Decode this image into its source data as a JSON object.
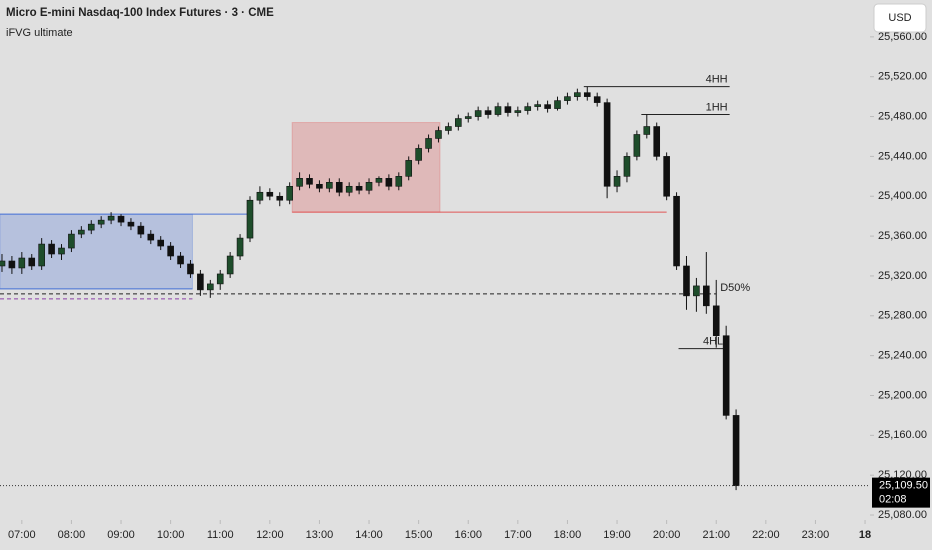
{
  "chart_data": {
    "type": "candlestick",
    "title": "Micro E-mini Nasdaq-100 Index Futures · 3 · CME",
    "subtitle": "iFVG ultimate",
    "currency": "USD",
    "up_color": "#1e4d2b",
    "down_color": "#111111",
    "xlim": [
      6.56,
      24.1
    ],
    "ylim": [
      25075,
      25597
    ],
    "xticks": [
      {
        "value": 7,
        "label": "07:00"
      },
      {
        "value": 8,
        "label": "08:00"
      },
      {
        "value": 9,
        "label": "09:00"
      },
      {
        "value": 10,
        "label": "10:00"
      },
      {
        "value": 11,
        "label": "11:00"
      },
      {
        "value": 12,
        "label": "12:00"
      },
      {
        "value": 13,
        "label": "13:00"
      },
      {
        "value": 14,
        "label": "14:00"
      },
      {
        "value": 15,
        "label": "15:00"
      },
      {
        "value": 16,
        "label": "16:00"
      },
      {
        "value": 17,
        "label": "17:00"
      },
      {
        "value": 18,
        "label": "18:00"
      },
      {
        "value": 19,
        "label": "19:00"
      },
      {
        "value": 20,
        "label": "20:00"
      },
      {
        "value": 21,
        "label": "21:00"
      },
      {
        "value": 22,
        "label": "22:00"
      },
      {
        "value": 23,
        "label": "23:00"
      },
      {
        "value": 24,
        "label": "18"
      }
    ],
    "yticks": [
      {
        "value": 25080,
        "label": "25,080.00"
      },
      {
        "value": 25120,
        "label": "25,120.00"
      },
      {
        "value": 25160,
        "label": "25,160.00"
      },
      {
        "value": 25200,
        "label": "25,200.00"
      },
      {
        "value": 25240,
        "label": "25,240.00"
      },
      {
        "value": 25280,
        "label": "25,280.00"
      },
      {
        "value": 25320,
        "label": "25,320.00"
      },
      {
        "value": 25360,
        "label": "25,360.00"
      },
      {
        "value": 25400,
        "label": "25,400.00"
      },
      {
        "value": 25440,
        "label": "25,440.00"
      },
      {
        "value": 25480,
        "label": "25,480.00"
      },
      {
        "value": 25520,
        "label": "25,520.00"
      },
      {
        "value": 25560,
        "label": "25,560.00"
      }
    ],
    "x": [
      6.6,
      6.8,
      7.0,
      7.2,
      7.4,
      7.6,
      7.8,
      8.0,
      8.2,
      8.4,
      8.6,
      8.8,
      9.0,
      9.2,
      9.4,
      9.6,
      9.8,
      10.0,
      10.2,
      10.4,
      10.6,
      10.8,
      11.0,
      11.2,
      11.4,
      11.6,
      11.8,
      12.0,
      12.2,
      12.4,
      12.6,
      12.8,
      13.0,
      13.2,
      13.4,
      13.6,
      13.8,
      14.0,
      14.2,
      14.4,
      14.6,
      14.8,
      15.0,
      15.2,
      15.4,
      15.6,
      15.8,
      16.0,
      16.2,
      16.4,
      16.6,
      16.8,
      17.0,
      17.2,
      17.4,
      17.6,
      17.8,
      18.0,
      18.2,
      18.4,
      18.6,
      18.8,
      19.0,
      19.2,
      19.4,
      19.6,
      19.8,
      20.0,
      20.2,
      20.4,
      20.6,
      20.8,
      21.0,
      21.2,
      21.4
    ],
    "open": [
      25330,
      25335,
      25328,
      25338,
      25330,
      25352,
      25342,
      25348,
      25362,
      25366,
      25372,
      25376,
      25380,
      25374,
      25370,
      25362,
      25356,
      25350,
      25340,
      25332,
      25322,
      25306,
      25312,
      25322,
      25340,
      25358,
      25396,
      25404,
      25400,
      25396,
      25410,
      25418,
      25412,
      25408,
      25414,
      25404,
      25410,
      25406,
      25414,
      25418,
      25410,
      25420,
      25436,
      25448,
      25458,
      25466,
      25470,
      25478,
      25480,
      25486,
      25482,
      25490,
      25484,
      25486,
      25490,
      25492,
      25488,
      25496,
      25500,
      25504,
      25500,
      25494,
      25410,
      25420,
      25440,
      25462,
      25470,
      25440,
      25400,
      25330,
      25300,
      25310,
      25290,
      25260,
      25180
    ],
    "high": [
      25342,
      25340,
      25344,
      25342,
      25358,
      25356,
      25352,
      25366,
      25370,
      25376,
      25380,
      25384,
      25382,
      25378,
      25374,
      25366,
      25360,
      25354,
      25344,
      25336,
      25326,
      25316,
      25326,
      25344,
      25362,
      25400,
      25410,
      25408,
      25404,
      25414,
      25424,
      25422,
      25416,
      25418,
      25418,
      25414,
      25414,
      25418,
      25420,
      25422,
      25424,
      25440,
      25452,
      25462,
      25470,
      25474,
      25482,
      25484,
      25490,
      25490,
      25494,
      25494,
      25490,
      25494,
      25496,
      25496,
      25500,
      25504,
      25508,
      25510,
      25504,
      25498,
      25426,
      25444,
      25466,
      25482,
      25474,
      25444,
      25404,
      25340,
      25318,
      25344,
      25316,
      25270,
      25186
    ],
    "low": [
      25324,
      25322,
      25322,
      25326,
      25326,
      25338,
      25336,
      25344,
      25358,
      25362,
      25368,
      25372,
      25370,
      25366,
      25358,
      25352,
      25346,
      25336,
      25328,
      25318,
      25300,
      25298,
      25306,
      25318,
      25336,
      25354,
      25392,
      25396,
      25390,
      25392,
      25406,
      25408,
      25404,
      25404,
      25400,
      25400,
      25402,
      25402,
      25410,
      25406,
      25406,
      25416,
      25432,
      25444,
      25454,
      25462,
      25466,
      25474,
      25476,
      25478,
      25480,
      25480,
      25480,
      25482,
      25486,
      25484,
      25486,
      25492,
      25496,
      25496,
      25490,
      25398,
      25404,
      25414,
      25436,
      25458,
      25436,
      25396,
      25326,
      25286,
      25284,
      25282,
      25248,
      25176,
      25105
    ],
    "close": [
      25335,
      25328,
      25338,
      25330,
      25352,
      25342,
      25348,
      25362,
      25366,
      25372,
      25376,
      25380,
      25374,
      25370,
      25362,
      25356,
      25350,
      25340,
      25332,
      25322,
      25306,
      25312,
      25322,
      25340,
      25358,
      25396,
      25404,
      25400,
      25396,
      25410,
      25418,
      25412,
      25408,
      25414,
      25404,
      25410,
      25406,
      25414,
      25418,
      25410,
      25420,
      25436,
      25448,
      25458,
      25466,
      25470,
      25478,
      25480,
      25486,
      25482,
      25490,
      25484,
      25486,
      25490,
      25492,
      25488,
      25496,
      25500,
      25504,
      25500,
      25494,
      25410,
      25420,
      25440,
      25462,
      25470,
      25440,
      25400,
      25330,
      25300,
      25310,
      25290,
      25260,
      25180,
      25109.5
    ],
    "zones": [
      {
        "x0": 6.56,
        "x1": 10.44,
        "top": 25382,
        "bottom": 25307,
        "line_end": 11.59,
        "color": "#4a73d6"
      },
      {
        "x0": 12.45,
        "x1": 15.43,
        "top": 25474,
        "bottom": 25384,
        "line_end": 20.0,
        "color": "#e05555"
      }
    ],
    "levels": [
      {
        "label": "4HH",
        "value": 25510,
        "x0": 18.33,
        "x1": 21.27,
        "style": "solid",
        "color": "#222222"
      },
      {
        "label": "1HH",
        "value": 25482,
        "x0": 19.49,
        "x1": 21.27,
        "style": "solid",
        "color": "#222222"
      },
      {
        "label": "D50%",
        "value": 25302,
        "x0": 6.56,
        "x1": 21.0,
        "style": "dashed",
        "color": "#222222"
      },
      {
        "label": "4HL",
        "value": 25247,
        "x0": 20.24,
        "x1": 21.18,
        "style": "solid",
        "color": "#222222"
      },
      {
        "value": 25297,
        "x0": 6.56,
        "x1": 10.44,
        "style": "dashed",
        "color": "#8a3fa8"
      }
    ],
    "last_price": {
      "value": 25109.5,
      "label": "25,109.50"
    },
    "countdown": "02:08"
  }
}
